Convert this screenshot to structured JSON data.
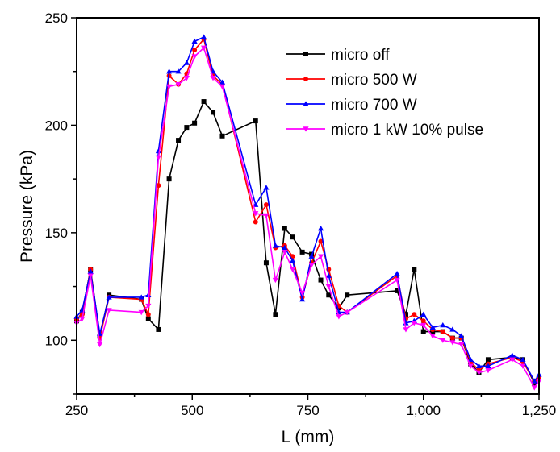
{
  "chart_data": {
    "type": "line",
    "xlabel": "L (mm)",
    "ylabel": "Pressure (kPa)",
    "xlim": [
      250,
      1250
    ],
    "ylim": [
      75,
      250
    ],
    "xticks": [
      250,
      500,
      750,
      1000,
      1250
    ],
    "xtick_labels": [
      "250",
      "500",
      "750",
      "1,000",
      "1,250"
    ],
    "yticks": [
      100,
      150,
      200,
      250
    ],
    "ytick_labels": [
      "100",
      "150",
      "200",
      "250"
    ],
    "grid": false,
    "legend_position": "top-right",
    "series": [
      {
        "name": "micro off",
        "color": "#000000",
        "marker": "square",
        "points": [
          [
            250,
            109
          ],
          [
            262,
            113
          ],
          [
            280,
            133
          ],
          [
            300,
            102
          ],
          [
            320,
            121
          ],
          [
            390,
            119
          ],
          [
            405,
            110
          ],
          [
            427,
            105
          ],
          [
            450,
            175
          ],
          [
            470,
            193
          ],
          [
            488,
            199
          ],
          [
            505,
            201
          ],
          [
            525,
            211
          ],
          [
            545,
            206
          ],
          [
            565,
            195
          ],
          [
            637,
            202
          ],
          [
            660,
            136
          ],
          [
            680,
            112
          ],
          [
            700,
            152
          ],
          [
            717,
            148
          ],
          [
            738,
            141
          ],
          [
            758,
            140
          ],
          [
            778,
            128
          ],
          [
            795,
            121
          ],
          [
            817,
            115
          ],
          [
            835,
            121
          ],
          [
            943,
            123
          ],
          [
            962,
            112
          ],
          [
            980,
            133
          ],
          [
            1000,
            104
          ],
          [
            1020,
            104
          ],
          [
            1042,
            104
          ],
          [
            1063,
            101
          ],
          [
            1082,
            101
          ],
          [
            1102,
            89
          ],
          [
            1120,
            85
          ],
          [
            1140,
            91
          ],
          [
            1192,
            92
          ],
          [
            1215,
            91
          ],
          [
            1240,
            80
          ],
          [
            1250,
            82
          ]
        ]
      },
      {
        "name": "micro 500 W",
        "color": "#ff0000",
        "marker": "circle",
        "points": [
          [
            250,
            110
          ],
          [
            262,
            112
          ],
          [
            280,
            133
          ],
          [
            300,
            101
          ],
          [
            320,
            120
          ],
          [
            390,
            119
          ],
          [
            405,
            112
          ],
          [
            427,
            172
          ],
          [
            450,
            223
          ],
          [
            470,
            219
          ],
          [
            488,
            224
          ],
          [
            505,
            235
          ],
          [
            525,
            240
          ],
          [
            545,
            223
          ],
          [
            565,
            219
          ],
          [
            637,
            155
          ],
          [
            660,
            163
          ],
          [
            680,
            143
          ],
          [
            700,
            144
          ],
          [
            717,
            139
          ],
          [
            738,
            120
          ],
          [
            758,
            136
          ],
          [
            778,
            146
          ],
          [
            795,
            133
          ],
          [
            817,
            116
          ],
          [
            835,
            113
          ],
          [
            943,
            130
          ],
          [
            962,
            110
          ],
          [
            980,
            112
          ],
          [
            1000,
            109
          ],
          [
            1020,
            105
          ],
          [
            1042,
            104
          ],
          [
            1063,
            101
          ],
          [
            1082,
            101
          ],
          [
            1102,
            90
          ],
          [
            1120,
            86
          ],
          [
            1140,
            89
          ],
          [
            1192,
            92
          ],
          [
            1215,
            90
          ],
          [
            1240,
            81
          ],
          [
            1250,
            83
          ]
        ]
      },
      {
        "name": "micro 700 W",
        "color": "#0000ff",
        "marker": "triangle-up",
        "points": [
          [
            250,
            111
          ],
          [
            262,
            114
          ],
          [
            280,
            132
          ],
          [
            300,
            103
          ],
          [
            320,
            120
          ],
          [
            390,
            120
          ],
          [
            405,
            121
          ],
          [
            427,
            188
          ],
          [
            450,
            225
          ],
          [
            470,
            225
          ],
          [
            488,
            229
          ],
          [
            505,
            239
          ],
          [
            525,
            241
          ],
          [
            545,
            225
          ],
          [
            565,
            220
          ],
          [
            637,
            163
          ],
          [
            660,
            171
          ],
          [
            680,
            144
          ],
          [
            700,
            143
          ],
          [
            717,
            137
          ],
          [
            738,
            119
          ],
          [
            758,
            139
          ],
          [
            778,
            152
          ],
          [
            795,
            130
          ],
          [
            817,
            113
          ],
          [
            835,
            113
          ],
          [
            943,
            131
          ],
          [
            962,
            108
          ],
          [
            980,
            109
          ],
          [
            1000,
            112
          ],
          [
            1020,
            106
          ],
          [
            1042,
            107
          ],
          [
            1063,
            105
          ],
          [
            1082,
            102
          ],
          [
            1102,
            91
          ],
          [
            1120,
            88
          ],
          [
            1140,
            88
          ],
          [
            1192,
            93
          ],
          [
            1215,
            91
          ],
          [
            1240,
            81
          ],
          [
            1250,
            84
          ]
        ]
      },
      {
        "name": "micro 1 kW 10% pulse",
        "color": "#ff00ff",
        "marker": "triangle-down",
        "points": [
          [
            250,
            108
          ],
          [
            262,
            110
          ],
          [
            280,
            130
          ],
          [
            300,
            98
          ],
          [
            320,
            114
          ],
          [
            390,
            113
          ],
          [
            405,
            116
          ],
          [
            427,
            185
          ],
          [
            450,
            218
          ],
          [
            470,
            219
          ],
          [
            488,
            222
          ],
          [
            505,
            232
          ],
          [
            525,
            236
          ],
          [
            545,
            222
          ],
          [
            565,
            218
          ],
          [
            637,
            159
          ],
          [
            660,
            158
          ],
          [
            680,
            128
          ],
          [
            700,
            141
          ],
          [
            717,
            133
          ],
          [
            738,
            122
          ],
          [
            758,
            135
          ],
          [
            778,
            139
          ],
          [
            795,
            125
          ],
          [
            817,
            111
          ],
          [
            835,
            113
          ],
          [
            943,
            128
          ],
          [
            962,
            105
          ],
          [
            980,
            108
          ],
          [
            1000,
            107
          ],
          [
            1020,
            102
          ],
          [
            1042,
            100
          ],
          [
            1063,
            99
          ],
          [
            1082,
            98
          ],
          [
            1102,
            88
          ],
          [
            1120,
            85
          ],
          [
            1140,
            86
          ],
          [
            1192,
            91
          ],
          [
            1215,
            88
          ],
          [
            1240,
            78
          ],
          [
            1250,
            81
          ]
        ]
      }
    ]
  }
}
